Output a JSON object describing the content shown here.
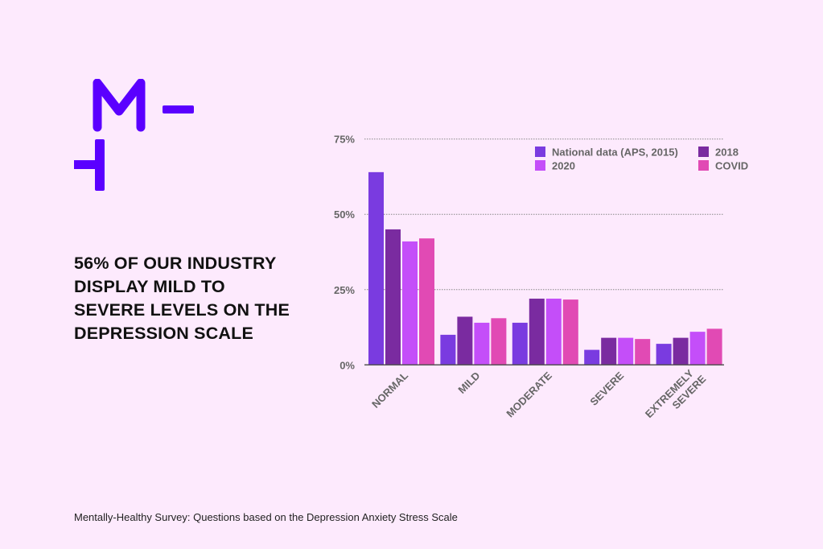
{
  "headline": "56% OF OUR INDUSTRY DISPLAY MILD TO SEVERE LEVELS ON THE DEPRESSION SCALE",
  "footnote": "Mentally-Healthy Survey: Questions based on the Depression Anxiety Stress Scale",
  "logo": {
    "text": "M",
    "color": "#5a00ff"
  },
  "colors": {
    "background": "#fdeafd"
  },
  "chart_data": {
    "type": "bar",
    "categories": [
      "NORMAL",
      "MILD",
      "MODERATE",
      "SEVERE",
      "EXTREMELY SEVERE"
    ],
    "series": [
      {
        "name": "National data (APS, 2015)",
        "color": "#7a3be0",
        "values": [
          64,
          10,
          14,
          5,
          7
        ]
      },
      {
        "name": "2018",
        "color": "#7a2ba0",
        "values": [
          45,
          16,
          22,
          9,
          9
        ]
      },
      {
        "name": "2020",
        "color": "#c44ef9",
        "values": [
          41,
          14,
          22,
          9,
          11
        ]
      },
      {
        "name": "COVID",
        "color": "#e14ab4",
        "values": [
          42,
          15.5,
          21.7,
          8.6,
          12
        ]
      }
    ],
    "yticks": [
      "0%",
      "25%",
      "50%",
      "75%"
    ],
    "ytick_values": [
      0,
      25,
      50,
      75
    ],
    "ylim": [
      0,
      75
    ],
    "grid": true,
    "legend": "top-right"
  }
}
